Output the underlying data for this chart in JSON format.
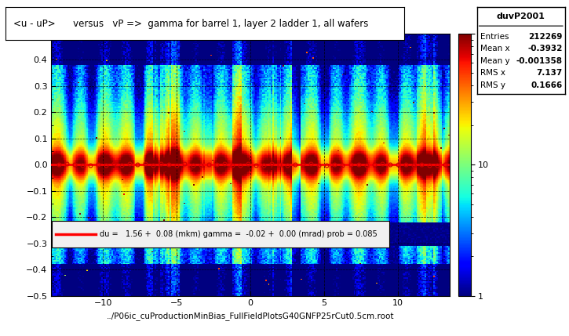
{
  "title": "<u - uP>      versus   vP =>  gamma for barrel 1, layer 2 ladder 1, all wafers",
  "xlabel": "../P06ic_cuProductionMinBias_FullFieldPlotsG40GNFP25rCut0.5cm.root",
  "stats_title": "duvP2001",
  "stats": {
    "Entries": "212269",
    "Mean x": "-0.3932",
    "Mean y": "-0.001358",
    "RMS x": "7.137",
    "RMS y": "0.1666"
  },
  "fit_text": "du =   1.56 +  0.08 (mkm) gamma =  -0.02 +  0.00 (mrad) prob = 0.085",
  "fit_line_y": 0.0,
  "fit_line_color": "#ff0000",
  "background_color": "#ffffff",
  "cmap": "jet",
  "xlim": [
    -13.5,
    13.5
  ],
  "ylim": [
    -0.5,
    0.5
  ],
  "seed": 42
}
